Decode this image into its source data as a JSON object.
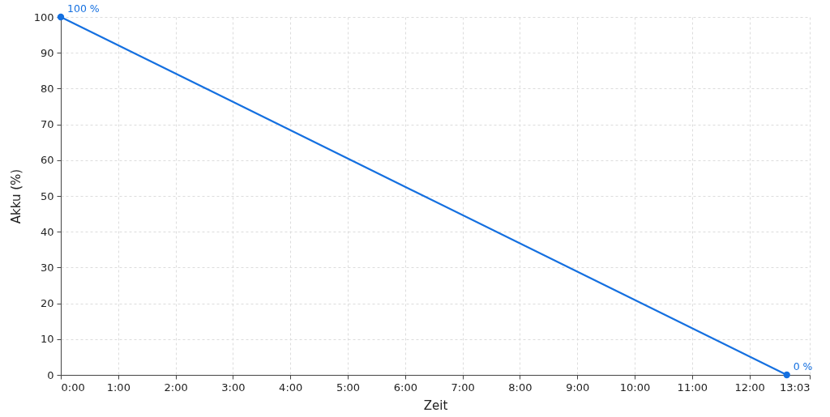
{
  "chart_data": {
    "type": "line",
    "xlabel": "Zeit",
    "ylabel": "Akku (%)",
    "x": [
      0,
      12.65
    ],
    "values": [
      100,
      0
    ],
    "value_labels": [
      "100 %",
      "0 %"
    ],
    "color": "#1570e0",
    "marker": "circle",
    "xlim": [
      0,
      13.05
    ],
    "ylim": [
      0,
      100
    ],
    "xticks": [
      {
        "value": 0,
        "label": "0:00"
      },
      {
        "value": 1,
        "label": "1:00"
      },
      {
        "value": 2,
        "label": "2:00"
      },
      {
        "value": 3,
        "label": "3:00"
      },
      {
        "value": 4,
        "label": "4:00"
      },
      {
        "value": 5,
        "label": "5:00"
      },
      {
        "value": 6,
        "label": "6:00"
      },
      {
        "value": 7,
        "label": "7:00"
      },
      {
        "value": 8,
        "label": "8:00"
      },
      {
        "value": 9,
        "label": "9:00"
      },
      {
        "value": 10,
        "label": "10:00"
      },
      {
        "value": 11,
        "label": "11:00"
      },
      {
        "value": 12,
        "label": "12:00"
      },
      {
        "value": 13.05,
        "label": "13:03"
      }
    ],
    "yticks": [
      0,
      10,
      20,
      30,
      40,
      50,
      60,
      70,
      80,
      90,
      100
    ],
    "grid": true
  }
}
